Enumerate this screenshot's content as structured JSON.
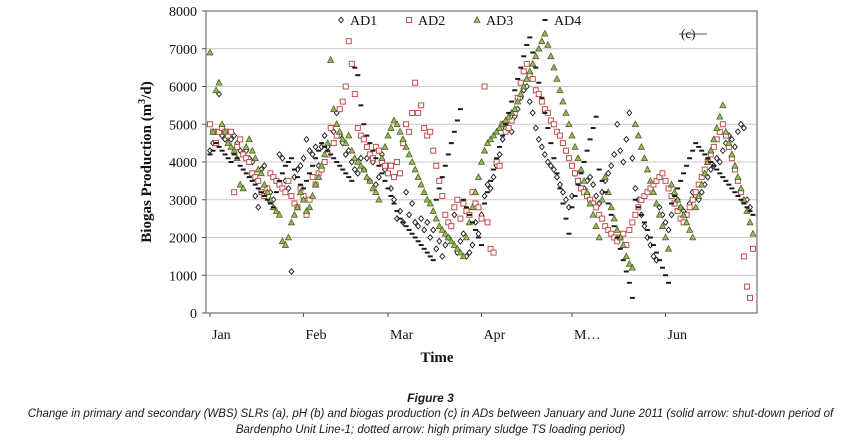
{
  "figure": {
    "label": "Figure 3",
    "caption": "Change in primary and secondary (WBS) SLRs (a), pH (b) and biogas production (c) in ADs between January and June 2011 (solid arrow: shut-down period of Bardenpho Unit Line-1; dotted arrow: high primary sludge TS loading period)"
  },
  "chart_data": {
    "type": "scatter",
    "panel_label": "(c)",
    "xlabel": "Time",
    "ylabel": "Biogas Production (m³/d)",
    "ylabel_main": "Biogas Production (m",
    "ylabel_sup": "3",
    "ylabel_tail": "/d)",
    "ylim": [
      0,
      8000
    ],
    "yticks": [
      "0",
      "1000",
      "2000",
      "3000",
      "4000",
      "5000",
      "6000",
      "7000",
      "8000"
    ],
    "xlim": [
      1,
      181
    ],
    "xticks": [
      {
        "label": "Jan",
        "day": 1
      },
      {
        "label": "Feb",
        "day": 32
      },
      {
        "label": "Mar",
        "day": 60
      },
      {
        "label": "Apr",
        "day": 91
      },
      {
        "label": "M…",
        "day": 121
      },
      {
        "label": "Jun",
        "day": 152
      }
    ],
    "grid": "horizontal",
    "legend_position": "top",
    "series": [
      {
        "name": "AD1",
        "marker": "diamond",
        "color": "#1a1a1a",
        "x_start": 1,
        "values": [
          4300,
          4500,
          4800,
          5800,
          4700,
          4600,
          4800,
          4600,
          4700,
          4500,
          4300,
          4200,
          4300,
          4100,
          4000,
          3100,
          2800,
          3800,
          3900,
          3300,
          3200,
          3000,
          3500,
          4200,
          4100,
          3500,
          3300,
          1100,
          3600,
          3800,
          3900,
          4100,
          4600,
          4300,
          4200,
          4400,
          3900,
          4400,
          4700,
          4400,
          4900,
          4800,
          5300,
          4700,
          4500,
          4200,
          4300,
          4000,
          3800,
          3700,
          4100,
          3800,
          4100,
          3500,
          4000,
          3400,
          3600,
          4200,
          3800,
          3900,
          3300,
          3000,
          2500,
          2700,
          2400,
          3200,
          2600,
          2900,
          2400,
          2300,
          2500,
          2200,
          2400,
          2000,
          2200,
          1700,
          1900,
          1500,
          1800,
          2000,
          2300,
          2600,
          1600,
          1900,
          2100,
          1500,
          1600,
          1800,
          2400,
          2100,
          2600,
          3100,
          3400,
          3300,
          3600,
          3900,
          4200,
          4600,
          4900,
          5100,
          4800,
          5200,
          5400,
          5700,
          5900,
          6000,
          5600,
          5300,
          4900,
          4600,
          4400,
          4200,
          4000,
          3900,
          3800,
          3600,
          3400,
          3200,
          3000,
          2800,
          3100,
          3700,
          3500,
          3300,
          3300,
          3500,
          3600,
          3400,
          3100,
          2900,
          3200,
          3500,
          3700,
          3900,
          4200,
          5000,
          4300,
          4000,
          4600,
          5300,
          4100,
          3300,
          3000,
          2600,
          2300,
          2000,
          1800,
          1500,
          1400,
          2800,
          2600,
          2400,
          2200,
          2600,
          2900,
          3000,
          2800,
          2700,
          2600,
          2900,
          3200,
          3100,
          3000,
          3200,
          3400,
          3600,
          3800,
          3900,
          4100,
          4000,
          4300,
          4500,
          4700,
          4600,
          4400,
          4800,
          5000,
          4900,
          3000,
          2800
        ]
      },
      {
        "name": "AD2",
        "marker": "square",
        "color": "#c0504d",
        "x_start": 1,
        "values": [
          5000,
          4800,
          4500,
          4800,
          4900,
          4800,
          4700,
          4800,
          3200,
          4400,
          4600,
          4200,
          4100,
          4000,
          3700,
          3600,
          3500,
          3200,
          3100,
          3300,
          3700,
          3600,
          3500,
          3400,
          3300,
          3200,
          3500,
          3100,
          2900,
          2800,
          3300,
          3100,
          2600,
          3000,
          3600,
          3400,
          3700,
          3800,
          4000,
          4200,
          4900,
          4500,
          4700,
          5400,
          5600,
          6000,
          7200,
          6600,
          5800,
          4900,
          4700,
          4600,
          4400,
          4200,
          4100,
          4400,
          4300,
          4000,
          3900,
          3700,
          3900,
          3600,
          4000,
          3700,
          4500,
          5000,
          4800,
          5300,
          6100,
          5300,
          5500,
          4900,
          4700,
          4800,
          4300,
          3900,
          3500,
          3100,
          2600,
          2400,
          2300,
          2800,
          3000,
          2500,
          2900,
          2700,
          2600,
          3200,
          2900,
          2800,
          2500,
          6000,
          2400,
          1700,
          1600,
          4000,
          3900,
          5000,
          4800,
          4900,
          5100,
          5300,
          5700,
          6100,
          6400,
          6600,
          6300,
          6200,
          5900,
          5800,
          5600,
          5400,
          5300,
          5100,
          5000,
          4800,
          4700,
          4500,
          4300,
          4100,
          3900,
          3700,
          3500,
          3300,
          3200,
          3100,
          3000,
          2900,
          2800,
          2600,
          2500,
          2300,
          2200,
          2100,
          2000,
          1900,
          2000,
          2100,
          1800,
          2200,
          2400,
          2600,
          2800,
          3000,
          3100,
          3200,
          3300,
          3400,
          3500,
          3600,
          3700,
          3500,
          3300,
          3100,
          2900,
          2700,
          2500,
          2400,
          2600,
          2800,
          3000,
          3200,
          3400,
          3600,
          3800,
          4000,
          4200,
          4400,
          4600,
          4800,
          5000,
          4700,
          4400,
          4100,
          3800,
          3500,
          3200,
          1500,
          700,
          400,
          1700
        ]
      },
      {
        "name": "AD3",
        "marker": "triangle",
        "color": "#4f6228",
        "x_start": 1,
        "values": [
          6900,
          4800,
          5900,
          6100,
          5000,
          4800,
          4500,
          4400,
          4300,
          4100,
          3400,
          3300,
          4400,
          4600,
          4300,
          4100,
          3800,
          3700,
          3400,
          3200,
          3000,
          2800,
          2700,
          2600,
          1900,
          1800,
          2000,
          2400,
          2600,
          2800,
          3200,
          3000,
          2700,
          2800,
          3100,
          3400,
          3600,
          3900,
          4200,
          4500,
          6700,
          5400,
          5000,
          4800,
          4600,
          4500,
          4700,
          4300,
          4100,
          4000,
          3900,
          3800,
          3600,
          3500,
          3300,
          3200,
          3000,
          4100,
          4400,
          4700,
          4900,
          5100,
          5000,
          4800,
          4600,
          4400,
          4200,
          4000,
          3800,
          3600,
          3400,
          3200,
          3000,
          2900,
          2700,
          2500,
          2300,
          2200,
          2100,
          2000,
          1900,
          1800,
          1700,
          1600,
          1500,
          2000,
          2400,
          2800,
          3200,
          3600,
          4000,
          4300,
          4500,
          4600,
          4700,
          4800,
          4900,
          5000,
          5100,
          5200,
          5300,
          5400,
          5600,
          5800,
          6000,
          6200,
          6400,
          6600,
          6800,
          7000,
          7200,
          7400,
          7100,
          6800,
          6500,
          6200,
          5900,
          5600,
          5300,
          5000,
          4700,
          4400,
          4100,
          3800,
          3500,
          3200,
          2900,
          2600,
          2300,
          2000,
          3000,
          3600,
          3200,
          2800,
          2500,
          2200,
          2000,
          1800,
          1500,
          1300,
          1200,
          5000,
          4700,
          4400,
          4100,
          3800,
          3500,
          3200,
          2900,
          2600,
          2300,
          2000,
          1700,
          3400,
          3200,
          3000,
          2800,
          2600,
          2400,
          2200,
          2000,
          2800,
          3100,
          3400,
          3700,
          4000,
          4300,
          4600,
          4900,
          5200,
          5500,
          4800,
          4500,
          4200,
          3900,
          3600,
          3300,
          3000,
          2700,
          2400,
          2100
        ]
      },
      {
        "name": "AD4",
        "marker": "dash",
        "color": "#1a1a1a",
        "x_start": 1,
        "values": [
          4200,
          4300,
          4500,
          4400,
          4300,
          4200,
          4100,
          4000,
          4200,
          4100,
          3900,
          3800,
          3700,
          3600,
          3500,
          3400,
          3300,
          3200,
          3100,
          3000,
          2900,
          2800,
          3200,
          3500,
          3700,
          3900,
          4000,
          4100,
          3800,
          3600,
          3400,
          3300,
          3500,
          3700,
          3900,
          4100,
          4300,
          4500,
          4400,
          4300,
          4200,
          4100,
          4000,
          3900,
          3800,
          3700,
          3600,
          3500,
          6500,
          6300,
          5500,
          5000,
          4700,
          4500,
          4300,
          4100,
          3900,
          3700,
          3500,
          3300,
          3100,
          2900,
          2700,
          2500,
          2400,
          2300,
          2200,
          2100,
          2000,
          1900,
          1800,
          1700,
          1600,
          1500,
          1400,
          3000,
          3300,
          3600,
          3900,
          4200,
          4500,
          4800,
          5100,
          5400,
          3000,
          2800,
          2600,
          2400,
          2200,
          2000,
          1800,
          2900,
          3200,
          3500,
          3800,
          4100,
          4400,
          4700,
          5000,
          5300,
          5600,
          5900,
          6200,
          6500,
          6800,
          7100,
          7300,
          6900,
          6500,
          6100,
          5700,
          5300,
          4900,
          4500,
          4100,
          3700,
          3300,
          2900,
          2500,
          2100,
          2800,
          3100,
          3400,
          3700,
          4000,
          4300,
          4600,
          4900,
          5200,
          3800,
          3500,
          3200,
          2900,
          2600,
          2300,
          2000,
          1700,
          1400,
          1100,
          800,
          400,
          3000,
          2800,
          2600,
          2400,
          2200,
          2000,
          1800,
          1600,
          1400,
          1200,
          1000,
          800,
          2900,
          3100,
          3300,
          3500,
          3700,
          3900,
          4100,
          4300,
          4500,
          4400,
          4300,
          4200,
          4100,
          4000,
          3900,
          3800,
          3700,
          3600,
          3500,
          3400,
          3300,
          3200,
          3100,
          3000,
          2900,
          2800,
          2700,
          2600,
          3700
        ]
      }
    ]
  }
}
